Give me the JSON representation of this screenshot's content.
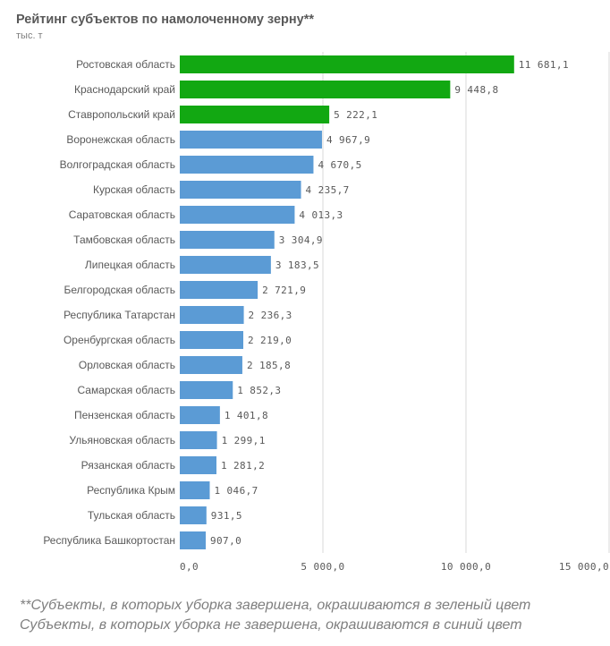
{
  "chart_data": {
    "type": "bar",
    "orientation": "horizontal",
    "title": "Рейтинг субъектов по намолоченному зерну**",
    "subtitle": "тыс. т",
    "categories": [
      "Ростовская область",
      "Краснодарский край",
      "Ставропольский край",
      "Воронежская область",
      "Волгоградская область",
      "Курская область",
      "Саратовская область",
      "Тамбовская область",
      "Липецкая область",
      "Белгородская область",
      "Республика Татарстан",
      "Оренбургская область",
      "Орловская область",
      "Самарская область",
      "Пензенская область",
      "Ульяновская область",
      "Рязанская область",
      "Республика Крым",
      "Тульская область",
      "Республика Башкортостан"
    ],
    "values": [
      11681.1,
      9448.8,
      5222.1,
      4967.9,
      4670.5,
      4235.7,
      4013.3,
      3304.9,
      3183.5,
      2721.9,
      2236.3,
      2219.0,
      2185.8,
      1852.3,
      1401.8,
      1299.1,
      1281.2,
      1046.7,
      931.5,
      907.0
    ],
    "value_labels": [
      "11 681,1",
      "9 448,8",
      "5 222,1",
      "4 967,9",
      "4 670,5",
      "4 235,7",
      "4 013,3",
      "3 304,9",
      "3 183,5",
      "2 721,9",
      "2 236,3",
      "2 219,0",
      "2 185,8",
      "1 852,3",
      "1 401,8",
      "1 299,1",
      "1 281,2",
      "1 046,7",
      "931,5",
      "907,0"
    ],
    "bar_colors": [
      "#12a812",
      "#12a812",
      "#12a812",
      "#5b9bd5",
      "#5b9bd5",
      "#5b9bd5",
      "#5b9bd5",
      "#5b9bd5",
      "#5b9bd5",
      "#5b9bd5",
      "#5b9bd5",
      "#5b9bd5",
      "#5b9bd5",
      "#5b9bd5",
      "#5b9bd5",
      "#5b9bd5",
      "#5b9bd5",
      "#5b9bd5",
      "#5b9bd5",
      "#5b9bd5"
    ],
    "xlim": [
      0,
      15000
    ],
    "xticks": [
      0,
      5000,
      10000,
      15000
    ],
    "xtick_labels": [
      "0,0",
      "5 000,0",
      "10 000,0",
      "15 000,0"
    ],
    "grid": true,
    "legend": "none"
  },
  "footnotes": [
    "**Субъекты, в которых уборка завершена, окрашиваются в зеленый цвет",
    "Субъекты, в которых уборка не завершена, окрашиваются в синий цвет"
  ],
  "colors": {
    "green_bar": "#12a812",
    "blue_bar": "#5b9bd5",
    "text": "#595959",
    "muted_text": "#7f7f7f",
    "gridline": "#d9d9d9"
  }
}
